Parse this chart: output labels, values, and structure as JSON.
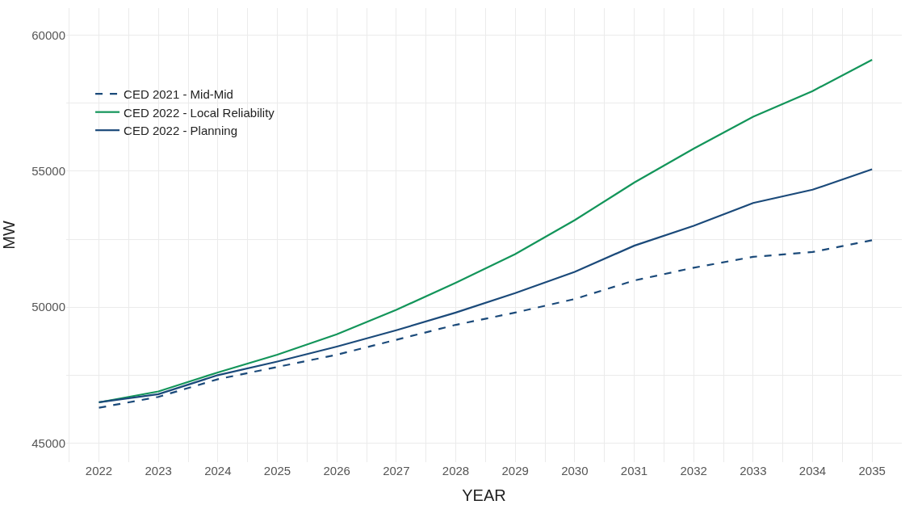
{
  "chart_data": {
    "type": "line",
    "xlabel": "YEAR",
    "ylabel": "MW",
    "x": [
      2022,
      2023,
      2024,
      2025,
      2026,
      2027,
      2028,
      2029,
      2030,
      2031,
      2032,
      2033,
      2034,
      2035
    ],
    "xlim": [
      2021.45,
      2035.5
    ],
    "xticks": [
      2022,
      2023,
      2024,
      2025,
      2026,
      2027,
      2028,
      2029,
      2030,
      2031,
      2032,
      2033,
      2034,
      2035
    ],
    "ylim": [
      44300,
      61000
    ],
    "yticks": [
      45000,
      50000,
      55000,
      60000
    ],
    "grid": true,
    "legend": "top left",
    "series": [
      {
        "name": "CED 2021 - Mid-Mid",
        "color": "#1b4a7a",
        "line_style": "dashed",
        "values": [
          46300,
          46700,
          47350,
          47800,
          48250,
          48800,
          49350,
          49800,
          50300,
          50980,
          51450,
          51850,
          52030,
          52460
        ]
      },
      {
        "name": "CED 2022 - Local Reliability",
        "color": "#13955a",
        "line_style": "solid",
        "values": [
          46500,
          46900,
          47600,
          48250,
          49000,
          49900,
          50900,
          51950,
          53200,
          54580,
          55830,
          57000,
          57950,
          59100
        ]
      },
      {
        "name": "CED 2022 - Planning",
        "color": "#1b4a7a",
        "line_style": "solid",
        "values": [
          46500,
          46800,
          47500,
          48000,
          48550,
          49150,
          49800,
          50520,
          51300,
          52260,
          52990,
          53830,
          54320,
          55070
        ]
      }
    ]
  }
}
